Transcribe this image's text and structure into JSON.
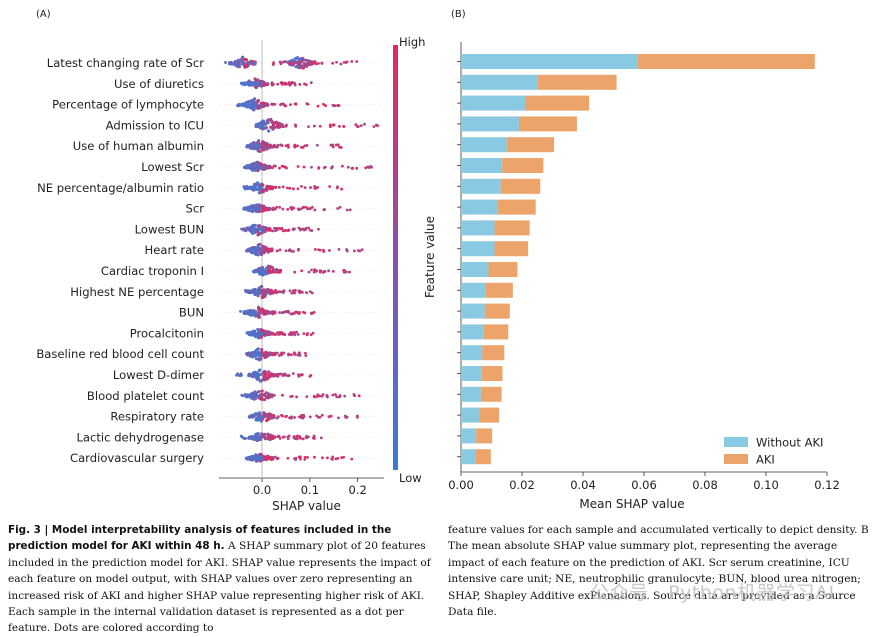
{
  "panel_a_label": "(A)",
  "panel_b_label": "(B)",
  "chart_data": [
    {
      "type": "scatter",
      "panel": "(A)",
      "subtype": "shap-beeswarm",
      "xlabel": "SHAP value",
      "xticks": [
        "0.0",
        "0.1",
        "0.2"
      ],
      "xlim": [
        -0.09,
        0.255
      ],
      "colorbar": {
        "high_label": "High",
        "low_label": "Low",
        "low_color": "#3b7dd8",
        "high_color": "#e5285c"
      },
      "features": [
        {
          "name": "Latest changing rate of Scr",
          "min": -0.08,
          "max": 0.21,
          "blobs": [
            [
              -0.04,
              6
            ],
            [
              0.08,
              7
            ]
          ]
        },
        {
          "name": "Use of diuretics",
          "min": -0.02,
          "max": 0.11,
          "blobs": [
            [
              -0.015,
              5
            ]
          ]
        },
        {
          "name": "Percentage of lymphocyte",
          "min": -0.06,
          "max": 0.165,
          "blobs": [
            [
              -0.015,
              6
            ]
          ]
        },
        {
          "name": "Admission to ICU",
          "min": -0.01,
          "max": 0.245,
          "blobs": [
            [
              0.015,
              8
            ]
          ]
        },
        {
          "name": "Use of human albumin",
          "min": -0.02,
          "max": 0.17,
          "blobs": [
            [
              -0.005,
              6
            ]
          ]
        },
        {
          "name": "Lowest Scr",
          "min": -0.015,
          "max": 0.23,
          "blobs": [
            [
              -0.01,
              5
            ]
          ]
        },
        {
          "name": "NE percentage/albumin ratio",
          "min": -0.04,
          "max": 0.17,
          "blobs": [
            [
              -0.005,
              6
            ]
          ]
        },
        {
          "name": "Scr",
          "min": -0.02,
          "max": 0.19,
          "blobs": [
            [
              -0.01,
              5
            ]
          ]
        },
        {
          "name": "Lowest BUN",
          "min": -0.045,
          "max": 0.12,
          "blobs": [
            [
              -0.01,
              6
            ]
          ]
        },
        {
          "name": "Heart rate",
          "min": -0.025,
          "max": 0.21,
          "blobs": [
            [
              -0.005,
              6
            ]
          ]
        },
        {
          "name": "Cardiac troponin I",
          "min": -0.01,
          "max": 0.19,
          "blobs": [
            [
              0.01,
              6
            ]
          ]
        },
        {
          "name": "Highest NE percentage",
          "min": -0.04,
          "max": 0.105,
          "blobs": [
            [
              0.0,
              6
            ]
          ]
        },
        {
          "name": "BUN",
          "min": -0.045,
          "max": 0.11,
          "blobs": [
            [
              -0.01,
              6
            ]
          ]
        },
        {
          "name": "Procalcitonin",
          "min": -0.01,
          "max": 0.11,
          "blobs": [
            [
              -0.005,
              5
            ]
          ]
        },
        {
          "name": "Baseline red blood cell count",
          "min": -0.02,
          "max": 0.095,
          "blobs": [
            [
              -0.005,
              6
            ]
          ]
        },
        {
          "name": "Lowest D-dimer",
          "min": -0.06,
          "max": 0.11,
          "blobs": [
            [
              0.0,
              7
            ]
          ]
        },
        {
          "name": "Blood platelet count",
          "min": -0.05,
          "max": 0.215,
          "blobs": [
            [
              -0.005,
              6
            ]
          ]
        },
        {
          "name": "Respiratory rate",
          "min": -0.01,
          "max": 0.2,
          "blobs": [
            [
              0.0,
              6
            ]
          ]
        },
        {
          "name": "Lactic dehydrogenase",
          "min": -0.045,
          "max": 0.125,
          "blobs": [
            [
              0.0,
              6
            ]
          ]
        },
        {
          "name": "Cardiovascular surgery",
          "min": -0.015,
          "max": 0.19,
          "blobs": [
            [
              -0.005,
              5
            ]
          ]
        }
      ]
    },
    {
      "type": "bar",
      "panel": "(B)",
      "orientation": "horizontal",
      "stacked": true,
      "xlabel": "Mean SHAP value",
      "ylabel": "Feature value",
      "xlim": [
        0,
        0.12
      ],
      "xticks": [
        "0.00",
        "0.02",
        "0.04",
        "0.06",
        "0.08",
        "0.10",
        "0.12"
      ],
      "legend_position": "lower-right",
      "series": [
        {
          "name": "Without AKI",
          "color": "#89c9e1",
          "values": [
            0.058,
            0.025,
            0.021,
            0.019,
            0.015,
            0.0135,
            0.013,
            0.012,
            0.011,
            0.011,
            0.009,
            0.008,
            0.0078,
            0.0075,
            0.007,
            0.0068,
            0.0065,
            0.006,
            0.005,
            0.0048
          ]
        },
        {
          "name": "AKI",
          "color": "#eda46a",
          "values": [
            0.058,
            0.026,
            0.021,
            0.019,
            0.0155,
            0.0135,
            0.013,
            0.0125,
            0.0115,
            0.011,
            0.0095,
            0.009,
            0.0082,
            0.008,
            0.0072,
            0.0068,
            0.0068,
            0.0065,
            0.0052,
            0.005
          ]
        }
      ]
    }
  ],
  "caption_left": {
    "title": "Fig. 3 | Model interpretability analysis of features included in the prediction model for AKI within 48 h.",
    "body": " A SHAP summary plot of 20 features included in the prediction model for AKI. SHAP value represents the impact of each feature on model output, with SHAP values over zero representing an increased risk of AKI and higher SHAP value representing higher risk of AKI. Each sample in the internal validation dataset is represented as a dot per feature. Dots are colored according to"
  },
  "caption_right": {
    "text": "feature values for each sample and accumulated vertically to depict density. B The mean absolute SHAP value summary plot, representing the average impact of each feature on the prediction of AKI. Scr serum creatinine, ICU intensive care unit; NE, neutrophilic granulocyte; BUN, blood urea nitrogen; SHAP, Shapley Additive exPlanations. Source data are provided as a Source Data file."
  },
  "watermark": "公众号 · Python机器学习AI"
}
